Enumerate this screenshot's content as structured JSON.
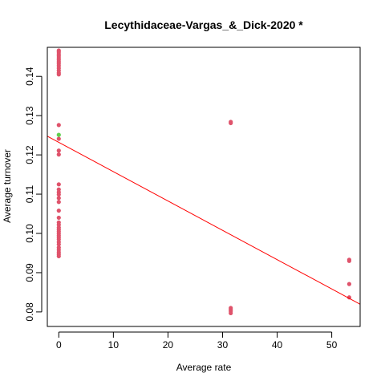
{
  "chart_data": {
    "type": "scatter",
    "title": "Lecythidaceae-Vargas_&_Dick-2020 *",
    "xlabel": "Average rate",
    "ylabel": "Average turnover",
    "xlim": [
      -2.1,
      55.2
    ],
    "ylim": [
      0.0763,
      0.1474
    ],
    "xticks": [
      0,
      10,
      20,
      30,
      40,
      50
    ],
    "yticks": [
      0.08,
      0.09,
      0.1,
      0.11,
      0.12,
      0.13,
      0.14
    ],
    "grid": false,
    "colors": {
      "points": "#DF536B",
      "highlight": "#61D04F",
      "trend": "#FF0000",
      "axis": "#000000"
    },
    "series": [
      {
        "color": "#DF536B",
        "points": [
          [
            0,
            0.1466
          ],
          [
            0,
            0.1462
          ],
          [
            0,
            0.1457
          ],
          [
            0,
            0.1452
          ],
          [
            0,
            0.1447
          ],
          [
            0,
            0.1442
          ],
          [
            0,
            0.1437
          ],
          [
            0,
            0.1432
          ],
          [
            0,
            0.1427
          ],
          [
            0,
            0.1421
          ],
          [
            0,
            0.1415
          ],
          [
            0,
            0.1409
          ],
          [
            0,
            0.1405
          ],
          [
            0,
            0.1276
          ],
          [
            0,
            0.1241
          ],
          [
            0,
            0.1211
          ],
          [
            0,
            0.1201
          ],
          [
            0,
            0.1125
          ],
          [
            0,
            0.1112
          ],
          [
            0,
            0.1105
          ],
          [
            0,
            0.1099
          ],
          [
            0,
            0.109
          ],
          [
            0,
            0.108
          ],
          [
            0,
            0.1058
          ],
          [
            0,
            0.104
          ],
          [
            0,
            0.1028
          ],
          [
            0,
            0.1022
          ],
          [
            0,
            0.1015
          ],
          [
            0,
            0.101
          ],
          [
            0,
            0.1005
          ],
          [
            0,
            0.1
          ],
          [
            0,
            0.0995
          ],
          [
            0,
            0.099
          ],
          [
            0,
            0.0985
          ],
          [
            0,
            0.0978
          ],
          [
            0,
            0.0972
          ],
          [
            0,
            0.0964
          ],
          [
            0,
            0.0958
          ],
          [
            0,
            0.0952
          ],
          [
            0,
            0.0947
          ],
          [
            0,
            0.0942
          ],
          [
            31.5,
            0.1284
          ],
          [
            31.5,
            0.1281
          ],
          [
            31.5,
            0.081
          ],
          [
            31.5,
            0.0806
          ],
          [
            31.5,
            0.0802
          ],
          [
            31.5,
            0.0797
          ],
          [
            53.2,
            0.0933
          ],
          [
            53.2,
            0.093
          ],
          [
            53.2,
            0.0871
          ],
          [
            53.2,
            0.0837
          ]
        ]
      },
      {
        "color": "#61D04F",
        "points": [
          [
            0,
            0.1251
          ]
        ]
      }
    ],
    "trend_line": {
      "intercept": 0.1232,
      "slope": -0.000747
    }
  }
}
